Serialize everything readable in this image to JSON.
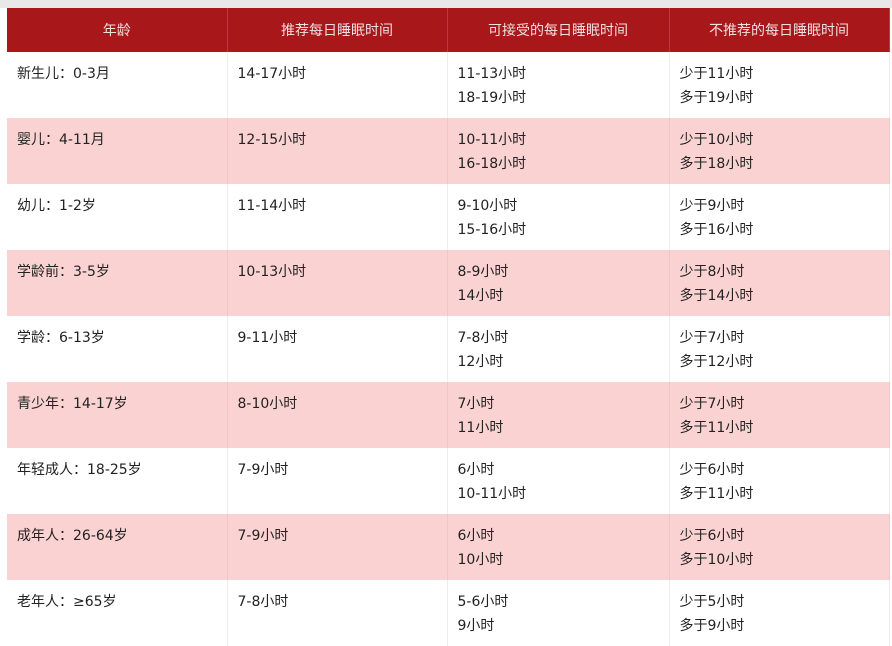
{
  "headers": [
    "年龄",
    "推荐每日睡眠时间",
    "可接受的每日睡眠时间",
    "不推荐的每日睡眠时间"
  ],
  "rows": [
    {
      "age": "新生儿：0-3月",
      "recommended": "14-17小时",
      "acceptable": [
        "11-13小时",
        "18-19小时"
      ],
      "not_recommended": [
        "少于11小时",
        "多于19小时"
      ]
    },
    {
      "age": "婴儿：4-11月",
      "recommended": "12-15小时",
      "acceptable": [
        "10-11小时",
        "16-18小时"
      ],
      "not_recommended": [
        "少于10小时",
        "多于18小时"
      ]
    },
    {
      "age": "幼儿：1-2岁",
      "recommended": "11-14小时",
      "acceptable": [
        "9-10小时",
        "15-16小时"
      ],
      "not_recommended": [
        "少于9小时",
        "多于16小时"
      ]
    },
    {
      "age": "学龄前：3-5岁",
      "recommended": "10-13小时",
      "acceptable": [
        "8-9小时",
        "14小时"
      ],
      "not_recommended": [
        "少于8小时",
        "多于14小时"
      ]
    },
    {
      "age": "学龄：6-13岁",
      "recommended": "9-11小时",
      "acceptable": [
        "7-8小时",
        "12小时"
      ],
      "not_recommended": [
        "少于7小时",
        "多于12小时"
      ]
    },
    {
      "age": "青少年：14-17岁",
      "recommended": "8-10小时",
      "acceptable": [
        "7小时",
        "11小时"
      ],
      "not_recommended": [
        "少于7小时",
        "多于11小时"
      ]
    },
    {
      "age": "年轻成人：18-25岁",
      "recommended": "7-9小时",
      "acceptable": [
        "6小时",
        "10-11小时"
      ],
      "not_recommended": [
        "少于6小时",
        "多于11小时"
      ]
    },
    {
      "age": "成年人：26-64岁",
      "recommended": "7-9小时",
      "acceptable": [
        "6小时",
        "10小时"
      ],
      "not_recommended": [
        "少于6小时",
        "多于10小时"
      ]
    },
    {
      "age": "老年人：≥65岁",
      "recommended": "7-8小时",
      "acceptable": [
        "5-6小时",
        "9小时"
      ],
      "not_recommended": [
        "少于5小时",
        "多于9小时"
      ]
    }
  ],
  "colors": {
    "header": "#a8171a",
    "stripe": "#fbd2d2"
  }
}
